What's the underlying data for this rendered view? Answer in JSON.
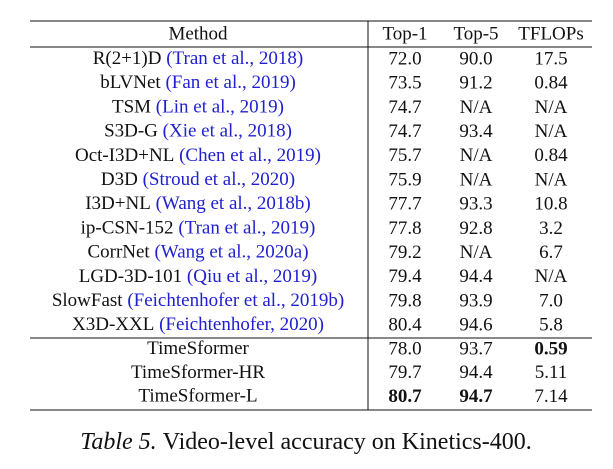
{
  "table": {
    "header": [
      "Method",
      "Top-1",
      "Top-5",
      "TFLOPs"
    ],
    "rows": [
      {
        "method": "R(2+1)D",
        "citation": "(Tran et al., 2018)",
        "top1": "72.0",
        "top5": "90.0",
        "tflops": "17.5"
      },
      {
        "method": "bLVNet",
        "citation": "(Fan et al., 2019)",
        "top1": "73.5",
        "top5": "91.2",
        "tflops": "0.84"
      },
      {
        "method": "TSM",
        "citation": "(Lin et al., 2019)",
        "top1": "74.7",
        "top5": "N/A",
        "tflops": "N/A"
      },
      {
        "method": "S3D-G",
        "citation": "(Xie et al., 2018)",
        "top1": "74.7",
        "top5": "93.4",
        "tflops": "N/A"
      },
      {
        "method": "Oct-I3D+NL",
        "citation": "(Chen et al., 2019)",
        "top1": "75.7",
        "top5": "N/A",
        "tflops": "0.84"
      },
      {
        "method": "D3D",
        "citation": "(Stroud et al., 2020)",
        "top1": "75.9",
        "top5": "N/A",
        "tflops": "N/A"
      },
      {
        "method": "I3D+NL",
        "citation": "(Wang et al., 2018b)",
        "top1": "77.7",
        "top5": "93.3",
        "tflops": "10.8"
      },
      {
        "method": "ip-CSN-152",
        "citation": "(Tran et al., 2019)",
        "top1": "77.8",
        "top5": "92.8",
        "tflops": "3.2"
      },
      {
        "method": "CorrNet",
        "citation": "(Wang et al., 2020a)",
        "top1": "79.2",
        "top5": "N/A",
        "tflops": "6.7"
      },
      {
        "method": "LGD-3D-101",
        "citation": "(Qiu et al., 2019)",
        "top1": "79.4",
        "top5": "94.4",
        "tflops": "N/A"
      },
      {
        "method": "SlowFast",
        "citation": "(Feichtenhofer et al., 2019b)",
        "top1": "79.8",
        "top5": "93.9",
        "tflops": "7.0"
      },
      {
        "method": "X3D-XXL",
        "citation": "(Feichtenhofer, 2020)",
        "top1": "80.4",
        "top5": "94.6",
        "tflops": "5.8"
      }
    ],
    "proposed_rows": [
      {
        "method": "TimeSformer",
        "top1": "78.0",
        "top5": "93.7",
        "tflops": "0.59"
      },
      {
        "method": "TimeSformer-HR",
        "top1": "79.7",
        "top5": "94.4",
        "tflops": "5.11"
      },
      {
        "method": "TimeSformer-L",
        "top1": "80.7",
        "top5": "94.7",
        "tflops": "7.14"
      }
    ]
  },
  "caption": {
    "label": "Table 5.",
    "text": "Video-level accuracy on Kinetics-400."
  }
}
